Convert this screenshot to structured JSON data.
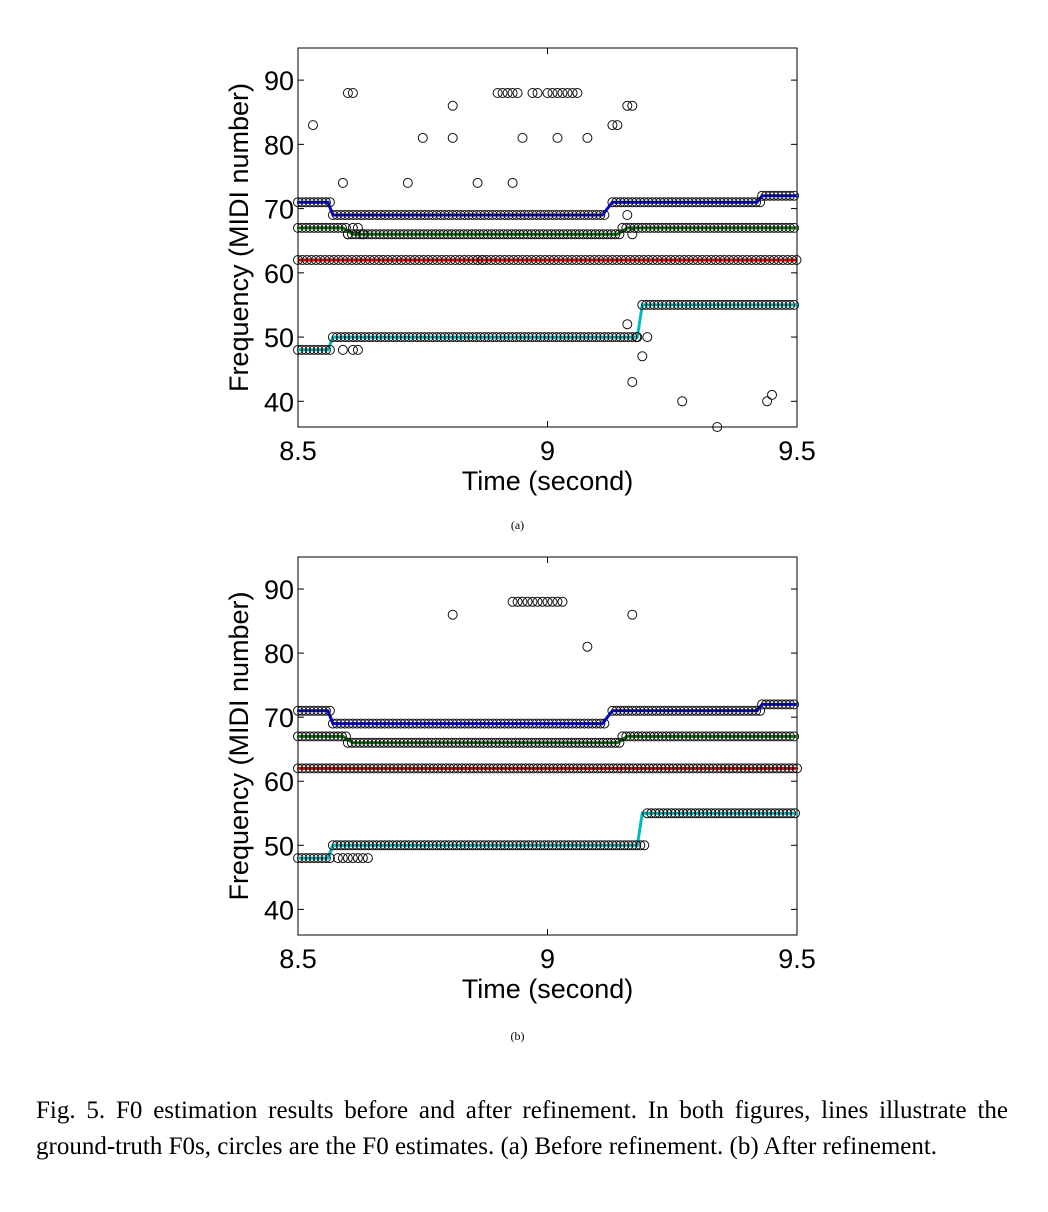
{
  "chart_data": [
    {
      "type": "scatter",
      "panel_label": "(a)",
      "xlabel": "Time (second)",
      "ylabel": "Frequency (MIDI number)",
      "xlim": [
        8.5,
        9.5
      ],
      "ylim": [
        36,
        95
      ],
      "xticks": [
        8.5,
        9,
        9.5
      ],
      "yticks": [
        40,
        50,
        60,
        70,
        80,
        90
      ],
      "grid": false,
      "ground_truth_lines": [
        {
          "color": "#0000ee",
          "points": [
            [
              8.5,
              71
            ],
            [
              8.56,
              71
            ],
            [
              8.57,
              69
            ],
            [
              9.11,
              69
            ],
            [
              9.13,
              71
            ],
            [
              9.42,
              71
            ],
            [
              9.43,
              72
            ],
            [
              9.5,
              72
            ]
          ]
        },
        {
          "color": "#008000",
          "points": [
            [
              8.5,
              67
            ],
            [
              8.59,
              67
            ],
            [
              8.61,
              66
            ],
            [
              9.14,
              66
            ],
            [
              9.16,
              67
            ],
            [
              9.5,
              67
            ]
          ]
        },
        {
          "color": "#dd0000",
          "points": [
            [
              8.5,
              62
            ],
            [
              9.5,
              62
            ]
          ]
        },
        {
          "color": "#00bbbb",
          "points": [
            [
              8.5,
              48
            ],
            [
              8.56,
              48
            ],
            [
              8.57,
              50
            ],
            [
              9.18,
              50
            ],
            [
              9.19,
              55
            ],
            [
              9.5,
              55
            ]
          ]
        }
      ],
      "estimate_runs": [
        {
          "x0": 8.5,
          "x1": 8.57,
          "y": 71,
          "step": 0.008
        },
        {
          "x0": 8.57,
          "x1": 9.12,
          "y": 69,
          "step": 0.008
        },
        {
          "x0": 9.13,
          "x1": 9.43,
          "y": 71,
          "step": 0.008
        },
        {
          "x0": 9.43,
          "x1": 9.5,
          "y": 72,
          "step": 0.008
        },
        {
          "x0": 8.5,
          "x1": 8.6,
          "y": 67,
          "step": 0.008
        },
        {
          "x0": 8.6,
          "x1": 9.15,
          "y": 66,
          "step": 0.008
        },
        {
          "x0": 9.15,
          "x1": 9.5,
          "y": 67,
          "step": 0.008
        },
        {
          "x0": 8.5,
          "x1": 9.5,
          "y": 62,
          "step": 0.009
        },
        {
          "x0": 8.5,
          "x1": 8.57,
          "y": 48,
          "step": 0.008
        },
        {
          "x0": 8.57,
          "x1": 9.18,
          "y": 50,
          "step": 0.008
        },
        {
          "x0": 9.19,
          "x1": 9.5,
          "y": 55,
          "step": 0.008
        }
      ],
      "outlier_points": [
        [
          8.53,
          83
        ],
        [
          8.59,
          74
        ],
        [
          8.6,
          88
        ],
        [
          8.61,
          88
        ],
        [
          8.72,
          74
        ],
        [
          8.75,
          81
        ],
        [
          8.81,
          86
        ],
        [
          8.81,
          81
        ],
        [
          8.86,
          74
        ],
        [
          8.9,
          88
        ],
        [
          8.91,
          88
        ],
        [
          8.92,
          88
        ],
        [
          8.93,
          88
        ],
        [
          8.94,
          88
        ],
        [
          8.93,
          74
        ],
        [
          8.95,
          81
        ],
        [
          8.97,
          88
        ],
        [
          8.98,
          88
        ],
        [
          9.0,
          88
        ],
        [
          9.01,
          88
        ],
        [
          9.02,
          88
        ],
        [
          9.03,
          88
        ],
        [
          9.04,
          88
        ],
        [
          9.05,
          88
        ],
        [
          9.06,
          88
        ],
        [
          9.02,
          81
        ],
        [
          9.08,
          81
        ],
        [
          9.13,
          83
        ],
        [
          9.14,
          83
        ],
        [
          9.16,
          86
        ],
        [
          9.17,
          86
        ],
        [
          9.16,
          69
        ],
        [
          9.17,
          66
        ],
        [
          9.16,
          52
        ],
        [
          9.18,
          50
        ],
        [
          9.19,
          47
        ],
        [
          9.2,
          50
        ],
        [
          9.17,
          43
        ],
        [
          8.6,
          66
        ],
        [
          8.61,
          67
        ],
        [
          8.62,
          67
        ],
        [
          8.63,
          66
        ],
        [
          8.59,
          48
        ],
        [
          8.61,
          48
        ],
        [
          8.62,
          48
        ],
        [
          8.86,
          62
        ],
        [
          8.87,
          62
        ],
        [
          9.27,
          40
        ],
        [
          9.34,
          36
        ],
        [
          9.44,
          40
        ],
        [
          9.45,
          41
        ]
      ]
    },
    {
      "type": "scatter",
      "panel_label": "(b)",
      "xlabel": "Time (second)",
      "ylabel": "Frequency (MIDI number)",
      "xlim": [
        8.5,
        9.5
      ],
      "ylim": [
        36,
        95
      ],
      "xticks": [
        8.5,
        9,
        9.5
      ],
      "yticks": [
        40,
        50,
        60,
        70,
        80,
        90
      ],
      "grid": false,
      "ground_truth_lines": [
        {
          "color": "#0000ee",
          "points": [
            [
              8.5,
              71
            ],
            [
              8.56,
              71
            ],
            [
              8.57,
              69
            ],
            [
              9.11,
              69
            ],
            [
              9.13,
              71
            ],
            [
              9.42,
              71
            ],
            [
              9.43,
              72
            ],
            [
              9.5,
              72
            ]
          ]
        },
        {
          "color": "#008000",
          "points": [
            [
              8.5,
              67
            ],
            [
              8.59,
              67
            ],
            [
              8.61,
              66
            ],
            [
              9.14,
              66
            ],
            [
              9.16,
              67
            ],
            [
              9.5,
              67
            ]
          ]
        },
        {
          "color": "#dd0000",
          "points": [
            [
              8.5,
              62
            ],
            [
              9.5,
              62
            ]
          ]
        },
        {
          "color": "#00bbbb",
          "points": [
            [
              8.5,
              48
            ],
            [
              8.56,
              48
            ],
            [
              8.57,
              50
            ],
            [
              9.18,
              50
            ],
            [
              9.19,
              55
            ],
            [
              9.5,
              55
            ]
          ]
        }
      ],
      "estimate_runs": [
        {
          "x0": 8.5,
          "x1": 8.57,
          "y": 71,
          "step": 0.008
        },
        {
          "x0": 8.57,
          "x1": 9.12,
          "y": 69,
          "step": 0.008
        },
        {
          "x0": 9.13,
          "x1": 9.43,
          "y": 71,
          "step": 0.008
        },
        {
          "x0": 9.43,
          "x1": 9.5,
          "y": 72,
          "step": 0.008
        },
        {
          "x0": 8.5,
          "x1": 8.6,
          "y": 67,
          "step": 0.008
        },
        {
          "x0": 8.6,
          "x1": 9.15,
          "y": 66,
          "step": 0.008
        },
        {
          "x0": 9.15,
          "x1": 9.5,
          "y": 67,
          "step": 0.008
        },
        {
          "x0": 8.5,
          "x1": 9.5,
          "y": 62,
          "step": 0.008
        },
        {
          "x0": 8.5,
          "x1": 8.57,
          "y": 48,
          "step": 0.008
        },
        {
          "x0": 8.57,
          "x1": 9.2,
          "y": 50,
          "step": 0.008
        },
        {
          "x0": 9.2,
          "x1": 9.5,
          "y": 55,
          "step": 0.008
        }
      ],
      "outlier_points": [
        [
          8.81,
          86
        ],
        [
          8.93,
          88
        ],
        [
          8.94,
          88
        ],
        [
          8.95,
          88
        ],
        [
          8.96,
          88
        ],
        [
          8.97,
          88
        ],
        [
          8.98,
          88
        ],
        [
          8.99,
          88
        ],
        [
          9.0,
          88
        ],
        [
          9.01,
          88
        ],
        [
          9.02,
          88
        ],
        [
          9.03,
          88
        ],
        [
          9.08,
          81
        ],
        [
          9.17,
          86
        ],
        [
          8.58,
          48
        ],
        [
          8.59,
          48
        ],
        [
          8.6,
          48
        ],
        [
          8.61,
          48
        ],
        [
          8.62,
          48
        ],
        [
          8.63,
          48
        ],
        [
          8.64,
          48
        ]
      ]
    }
  ],
  "caption": "Fig. 5.   F0 estimation results before and after refinement. In both figures, lines illustrate the ground-truth F0s, circles are the F0 estimates. (a) Before refinement. (b) After refinement."
}
